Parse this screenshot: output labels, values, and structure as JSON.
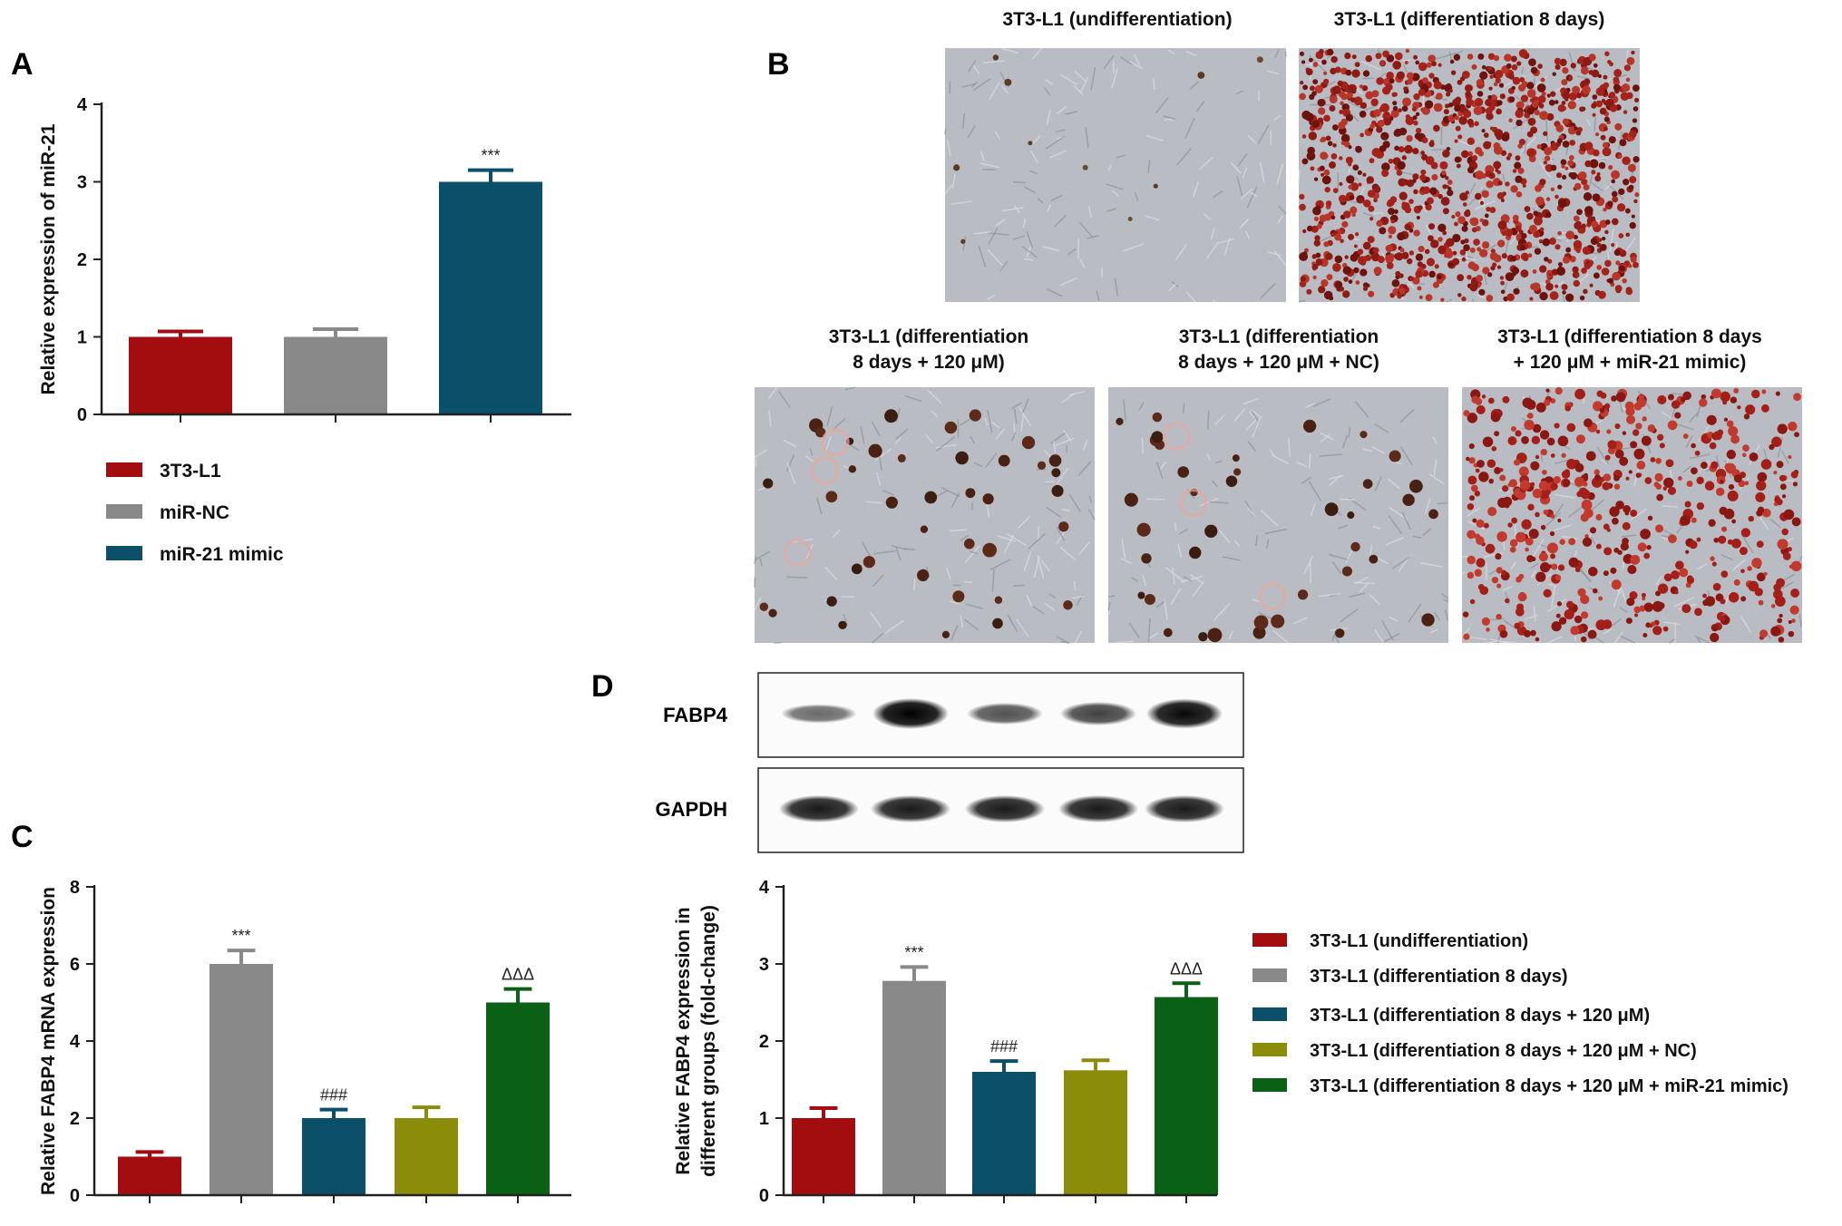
{
  "panels": {
    "a": "A",
    "b": "B",
    "c": "C",
    "d": "D"
  },
  "colors": {
    "red": "#a30d10",
    "gray": "#898989",
    "teal": "#0b4f68",
    "olive": "#8b8c0a",
    "green": "#0a6014",
    "axis": "#222222"
  },
  "micrographs": {
    "top": [
      {
        "title_lines": [
          "3T3-L1 (undifferentiation)"
        ],
        "style": "sparse"
      },
      {
        "title_lines": [
          "3T3-L1 (differentiation 8 days)"
        ],
        "style": "dense"
      }
    ],
    "bottom": [
      {
        "title_lines": [
          "3T3-L1 (differentiation",
          "8 days + 120 μM)"
        ],
        "style": "dots"
      },
      {
        "title_lines": [
          "3T3-L1 (differentiation",
          "8 days + 120 μM + NC)"
        ],
        "style": "dots"
      },
      {
        "title_lines": [
          "3T3-L1 (differentiation 8 days",
          "+ 120 μM + miR-21 mimic)"
        ],
        "style": "medium"
      }
    ]
  },
  "blot": {
    "labels": [
      "FABP4",
      "GAPDH"
    ],
    "fabp4_intensity": [
      0.35,
      1.0,
      0.5,
      0.6,
      0.95
    ],
    "gapdh_intensity": [
      0.95,
      0.95,
      0.95,
      0.95,
      0.95
    ]
  },
  "chart_data": [
    {
      "type": "bar",
      "panel": "A",
      "categories": [
        "3T3-L1",
        "miR-NC",
        "miR-21 mimic"
      ],
      "values": [
        1.0,
        1.0,
        3.0
      ],
      "errors": [
        0.07,
        0.1,
        0.15
      ],
      "annotations": [
        "",
        "",
        "***"
      ],
      "colors": [
        "#a30d10",
        "#898989",
        "#0b4f68"
      ],
      "ylabel": "Relative expression of miR-21",
      "ylim": [
        0,
        4
      ],
      "yticks": [
        0,
        1,
        2,
        3,
        4
      ],
      "legend": [
        "3T3-L1",
        "miR-NC",
        "miR-21 mimic"
      ]
    },
    {
      "type": "bar",
      "panel": "C",
      "categories": [
        "3T3-L1 (undifferentiation)",
        "3T3-L1 (differentiation 8 days)",
        "3T3-L1 (differentiation 8 days + 120 μM)",
        "3T3-L1 (differentiation 8 days + 120 μM + NC)",
        "3T3-L1 (differentiation 8 days + 120 μM + miR-21 mimic)"
      ],
      "values": [
        1.0,
        6.0,
        2.0,
        2.0,
        5.0
      ],
      "errors": [
        0.12,
        0.35,
        0.22,
        0.28,
        0.35
      ],
      "annotations": [
        "",
        "***",
        "###",
        "",
        "ΔΔΔ"
      ],
      "colors": [
        "#a30d10",
        "#898989",
        "#0b4f68",
        "#8b8c0a",
        "#0a6014"
      ],
      "ylabel": "Relative FABP4 mRNA expression",
      "ylim": [
        0,
        8
      ],
      "yticks": [
        0,
        2,
        4,
        6,
        8
      ]
    },
    {
      "type": "bar",
      "panel": "D",
      "categories": [
        "3T3-L1 (undifferentiation)",
        "3T3-L1 (differentiation 8 days)",
        "3T3-L1 (differentiation 8 days + 120 μM)",
        "3T3-L1 (differentiation 8 days + 120 μM + NC)",
        "3T3-L1 (differentiation 8 days + 120 μM + miR-21 mimic)"
      ],
      "values": [
        1.0,
        2.78,
        1.6,
        1.62,
        2.57
      ],
      "errors": [
        0.13,
        0.18,
        0.14,
        0.13,
        0.18
      ],
      "annotations": [
        "",
        "***",
        "###",
        "",
        "ΔΔΔ"
      ],
      "colors": [
        "#a30d10",
        "#898989",
        "#0b4f68",
        "#8b8c0a",
        "#0a6014"
      ],
      "ylabel_lines": [
        "Relative FABP4 expression in",
        "different groups (fold-change)"
      ],
      "ylim": [
        0,
        4
      ],
      "yticks": [
        0,
        1,
        2,
        3,
        4
      ],
      "legend": [
        "3T3-L1 (undifferentiation)",
        "3T3-L1 (differentiation 8 days)",
        "3T3-L1 (differentiation 8 days + 120 μM)",
        "3T3-L1 (differentiation 8 days + 120 μM + NC)",
        "3T3-L1 (differentiation 8 days + 120 μM + miR-21 mimic)"
      ]
    }
  ]
}
